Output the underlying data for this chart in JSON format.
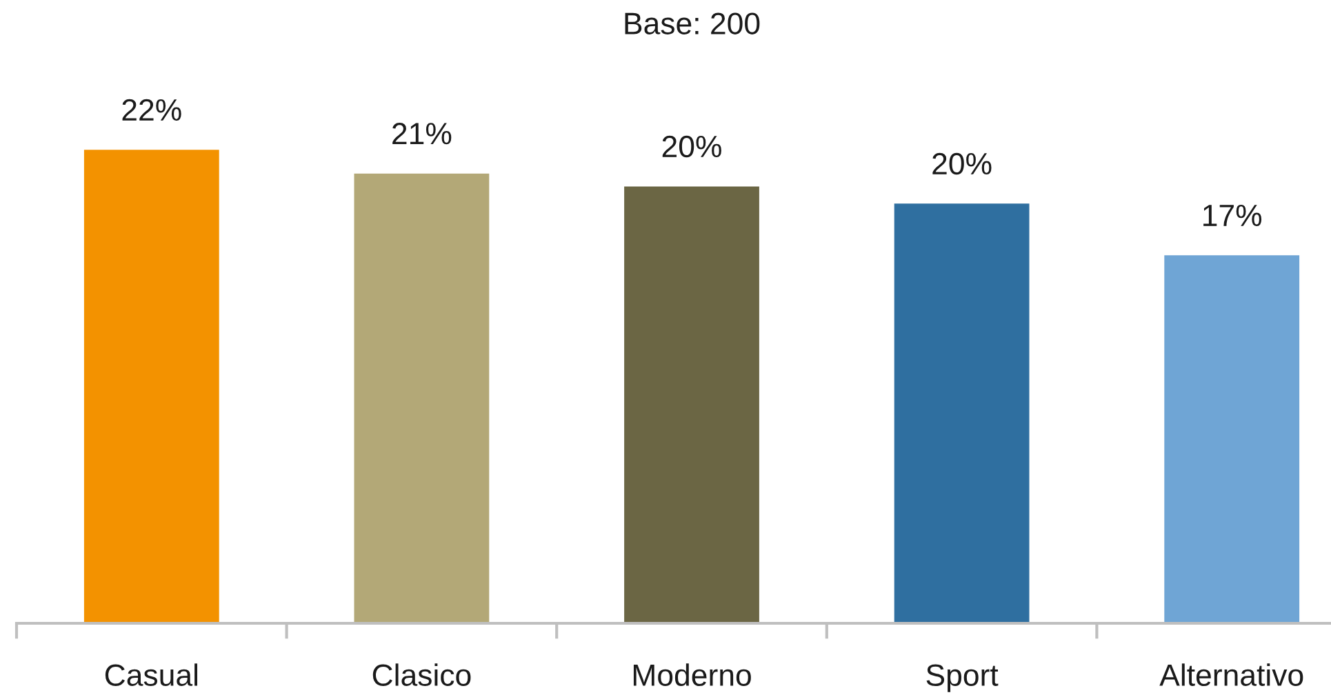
{
  "chart_data": {
    "type": "bar",
    "title": "Base: 200",
    "categories": [
      "Casual",
      "Clasico",
      "Moderno",
      "Sport",
      "Alternativo"
    ],
    "values": [
      22,
      20.9,
      20.3,
      19.5,
      17.1
    ],
    "colors": [
      "#f39200",
      "#b3a877",
      "#6b6644",
      "#2f6fa0",
      "#6fa5d5"
    ],
    "value_labels": [
      "22%",
      "21%",
      "20%",
      "20%",
      "17%"
    ]
  }
}
